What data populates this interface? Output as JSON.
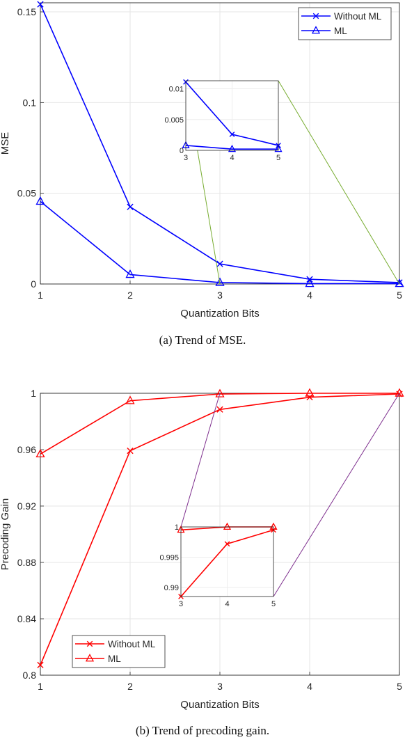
{
  "chart_data": [
    {
      "type": "line",
      "caption": "(a)  Trend of MSE.",
      "xlabel": "Quantization Bits",
      "ylabel": "MSE",
      "x": [
        1,
        2,
        3,
        4,
        5
      ],
      "xlim": [
        1,
        5
      ],
      "ylim": [
        0,
        0.155
      ],
      "xticks": [
        "1",
        "2",
        "3",
        "4",
        "5"
      ],
      "yticks": [
        {
          "v": 0,
          "label": "0"
        },
        {
          "v": 0.05,
          "label": "0.05"
        },
        {
          "v": 0.1,
          "label": "0.1"
        },
        {
          "v": 0.15,
          "label": "0.15"
        }
      ],
      "grid": true,
      "legend_position": "top-right",
      "series": [
        {
          "name": "Without ML",
          "marker": "x",
          "color": "#0000ff",
          "values": [
            0.1542,
            0.0425,
            0.0111,
            0.0026,
            0.0008
          ]
        },
        {
          "name": "ML",
          "marker": "triangle",
          "color": "#0000ff",
          "values": [
            0.0455,
            0.0052,
            0.0008,
            0.0002,
            0.0002
          ]
        }
      ],
      "inset": {
        "x": [
          3,
          4,
          5
        ],
        "xlim": [
          3,
          5
        ],
        "ylim": [
          0,
          0.0113
        ],
        "xticks": [
          "3",
          "4",
          "5"
        ],
        "yticks": [
          {
            "v": 0,
            "label": "0"
          },
          {
            "v": 0.005,
            "label": "0.005"
          },
          {
            "v": 0.01,
            "label": "0.01"
          }
        ],
        "connector_color": "#77ac30"
      }
    },
    {
      "type": "line",
      "caption": "(b)  Trend of precoding gain.",
      "xlabel": "Quantization Bits",
      "ylabel": "Precoding Gain",
      "x": [
        1,
        2,
        3,
        4,
        5
      ],
      "xlim": [
        1,
        5
      ],
      "ylim": [
        0.8,
        1.0
      ],
      "xticks": [
        "1",
        "2",
        "3",
        "4",
        "5"
      ],
      "yticks": [
        {
          "v": 0.8,
          "label": "0.8"
        },
        {
          "v": 0.84,
          "label": "0.84"
        },
        {
          "v": 0.88,
          "label": "0.88"
        },
        {
          "v": 0.92,
          "label": "0.92"
        },
        {
          "v": 0.96,
          "label": "0.96"
        },
        {
          "v": 1.0,
          "label": "1"
        }
      ],
      "grid": true,
      "legend_position": "bottom-left",
      "series": [
        {
          "name": "Without ML",
          "marker": "x",
          "color": "#ff0000",
          "values": [
            0.8072,
            0.9592,
            0.9885,
            0.9972,
            0.9995
          ]
        },
        {
          "name": "ML",
          "marker": "triangle",
          "color": "#ff0000",
          "values": [
            0.9569,
            0.9947,
            0.9995,
            1.0,
            1.0
          ]
        }
      ],
      "inset": {
        "x": [
          3,
          4,
          5
        ],
        "xlim": [
          3,
          5
        ],
        "ylim": [
          0.9885,
          1.0
        ],
        "xticks": [
          "3",
          "4",
          "5"
        ],
        "yticks": [
          {
            "v": 0.99,
            "label": "0.99"
          },
          {
            "v": 0.995,
            "label": "0.995"
          },
          {
            "v": 1.0,
            "label": "1"
          }
        ],
        "connector_color": "#7e2f8e"
      }
    }
  ]
}
